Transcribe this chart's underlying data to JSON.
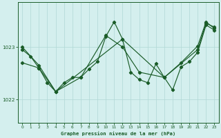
{
  "title": "Graphe pression niveau de la mer (hPa)",
  "bg_color": "#d4efee",
  "grid_color": "#b0d8d5",
  "line_color": "#1a5c28",
  "marker_color": "#1a5c28",
  "xlim": [
    -0.5,
    23.5
  ],
  "ylim": [
    1021.55,
    1023.85
  ],
  "yticks": [
    1022,
    1023
  ],
  "xticks": [
    0,
    1,
    2,
    3,
    4,
    5,
    6,
    7,
    8,
    9,
    10,
    11,
    12,
    13,
    14,
    15,
    16,
    17,
    18,
    19,
    20,
    21,
    22,
    23
  ],
  "series1_x": [
    0,
    1,
    2,
    3,
    4,
    5,
    6,
    7,
    8,
    9,
    10,
    11,
    12,
    13,
    14,
    15,
    16,
    17,
    18,
    19,
    20,
    21,
    22,
    23
  ],
  "series1_y": [
    1022.95,
    1022.82,
    1022.6,
    1022.32,
    1022.15,
    1022.32,
    1022.42,
    1022.42,
    1022.58,
    1022.72,
    1023.2,
    1023.48,
    1023.15,
    1022.52,
    1022.38,
    1022.32,
    1022.68,
    1022.42,
    1022.18,
    1022.62,
    1022.72,
    1022.9,
    1023.42,
    1023.32
  ],
  "series2_x": [
    0,
    2,
    4,
    7,
    10,
    12,
    14,
    17,
    19,
    21,
    22,
    23
  ],
  "series2_y": [
    1022.7,
    1022.6,
    1022.15,
    1022.42,
    1023.22,
    1023.0,
    1022.52,
    1022.42,
    1022.7,
    1023.02,
    1023.48,
    1023.35
  ],
  "series3_x": [
    0,
    2,
    4,
    12,
    17,
    21,
    22,
    23
  ],
  "series3_y": [
    1023.0,
    1022.65,
    1022.15,
    1023.15,
    1022.42,
    1022.95,
    1023.45,
    1023.38
  ]
}
